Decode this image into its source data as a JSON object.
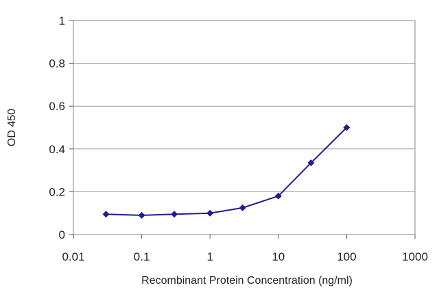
{
  "chart_data": {
    "type": "line",
    "xscale": "log",
    "xlabel": "Recombinant Protein Concentration (ng/ml)",
    "ylabel": "OD 450",
    "xlim": [
      0.01,
      1000
    ],
    "ylim": [
      0,
      1
    ],
    "x_ticks": [
      "0.01",
      "0.1",
      "1",
      "10",
      "100",
      "1000"
    ],
    "y_ticks": [
      "0",
      "0.2",
      "0.4",
      "0.6",
      "0.8",
      "1"
    ],
    "grid": "horizontal",
    "series": [
      {
        "x": [
          0.03,
          0.1,
          0.3,
          1,
          3,
          10,
          30,
          100
        ],
        "values": [
          0.095,
          0.09,
          0.095,
          0.1,
          0.125,
          0.18,
          0.335,
          0.5
        ]
      }
    ],
    "colors": {
      "series": "#1f1f8f",
      "grid": "#9a9a9a",
      "frame": "#9a9a9a"
    }
  }
}
